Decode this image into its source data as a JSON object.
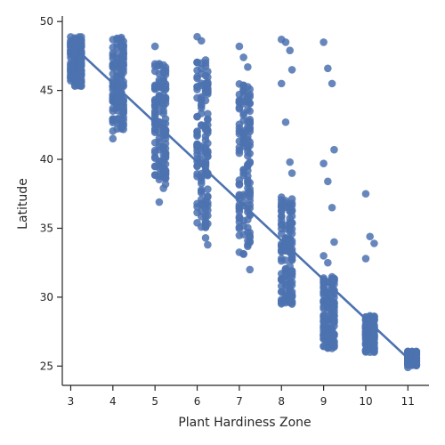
{
  "chart_data": {
    "type": "scatter",
    "title": "",
    "xlabel": "Plant Hardiness Zone",
    "ylabel": "Latitude",
    "xlim": [
      2.8,
      11.5
    ],
    "ylim": [
      23.6,
      50.4
    ],
    "xticks": [
      3,
      4,
      5,
      6,
      7,
      8,
      9,
      10,
      11
    ],
    "yticks": [
      25,
      30,
      35,
      40,
      45,
      50
    ],
    "grid": false,
    "color": "#4c72b0",
    "regression": {
      "x_start": 3.2,
      "y_start": 47.8,
      "x_end": 11.2,
      "y_end": 25.0
    },
    "columns": [
      {
        "x_values": [
          3.0,
          3.1,
          3.2,
          3.25
        ],
        "y_range": [
          45.3,
          48.9
        ],
        "extra_y": []
      },
      {
        "x_values": [
          4.0,
          4.1,
          4.2,
          4.25
        ],
        "y_range": [
          42.0,
          48.9
        ],
        "extra_y": [
          41.5
        ]
      },
      {
        "x_values": [
          5.0,
          5.1,
          5.2,
          5.25
        ],
        "y_range": [
          38.5,
          47.0
        ],
        "extra_y": [
          48.2,
          36.9,
          37.9,
          38.2
        ]
      },
      {
        "x_values": [
          6.0,
          6.1,
          6.2,
          6.25
        ],
        "y_range": [
          35.0,
          47.5
        ],
        "extra_y": [
          48.9,
          48.6,
          34.3,
          33.8
        ]
      },
      {
        "x_values": [
          7.0,
          7.1,
          7.2,
          7.25
        ],
        "y_range": [
          33.0,
          45.5
        ],
        "extra_y": [
          48.2,
          47.4,
          46.7,
          32.0
        ]
      },
      {
        "x_values": [
          8.0,
          8.1,
          8.2,
          8.25
        ],
        "y_range": [
          29.5,
          37.5
        ],
        "extra_y": [
          48.7,
          48.5,
          47.9,
          46.5,
          45.5,
          42.7,
          39.8,
          39.0
        ]
      },
      {
        "x_values": [
          9.0,
          9.1,
          9.2,
          9.25
        ],
        "y_range": [
          26.2,
          31.5
        ],
        "extra_y": [
          48.5,
          46.6,
          45.5,
          40.7,
          39.7,
          38.4,
          36.5,
          34.0,
          33.0,
          32.5
        ]
      },
      {
        "x_values": [
          10.0,
          10.1,
          10.2
        ],
        "y_range": [
          26.0,
          28.8
        ],
        "extra_y": [
          37.5,
          34.4,
          33.9,
          32.8
        ]
      },
      {
        "x_values": [
          11.0,
          11.1,
          11.2
        ],
        "y_range": [
          25.0,
          26.1
        ],
        "extra_y": [
          24.9
        ]
      }
    ]
  }
}
